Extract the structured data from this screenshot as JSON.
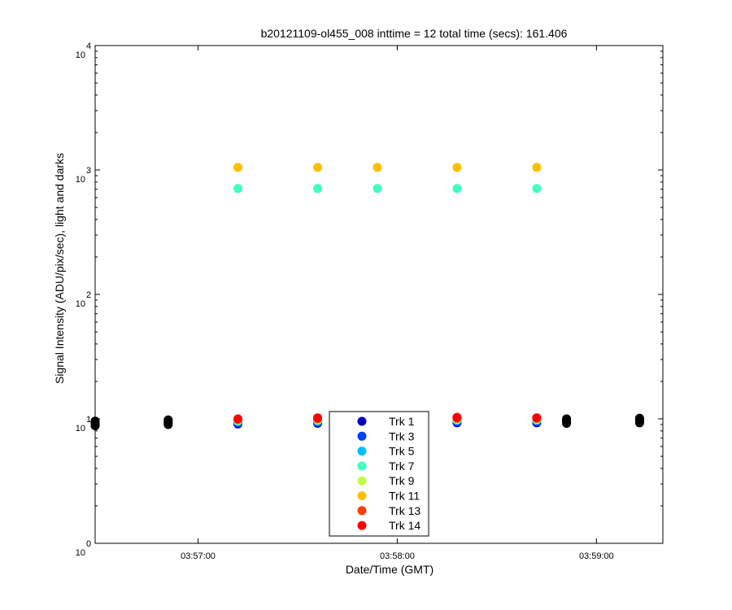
{
  "chart_data": {
    "type": "scatter",
    "title": "b20121109-ol455_008 inttime = 12 total time (secs): 161.406",
    "xlabel": "Date/Time (GMT)",
    "ylabel": "Signal Intensity (ADU/pix/sec), light and darks",
    "yscale": "log",
    "ylim": [
      1,
      10000
    ],
    "xlim": [
      "03:56:29",
      "03:59:20"
    ],
    "x_ticks": [
      "03:57:00",
      "03:58:00",
      "03:59:00"
    ],
    "y_ticks": [
      {
        "value": 1,
        "base": "10",
        "exp": "0"
      },
      {
        "value": 10,
        "base": "10",
        "exp": "1"
      },
      {
        "value": 100,
        "base": "10",
        "exp": "2"
      },
      {
        "value": 1000,
        "base": "10",
        "exp": "3"
      },
      {
        "value": 10000,
        "base": "10",
        "exp": "4"
      }
    ],
    "grid": false,
    "legend_position": "bottom-center",
    "series": [
      {
        "name": "Trk 1",
        "color": "#0000bf",
        "x": [
          "03:57:12",
          "03:57:36",
          "03:58:18",
          "03:58:42"
        ],
        "y": [
          9.1,
          9.2,
          9.3,
          9.3
        ]
      },
      {
        "name": "Trk 3",
        "color": "#0040ff",
        "x": [
          "03:57:12",
          "03:57:36",
          "03:58:18",
          "03:58:42"
        ],
        "y": [
          9.3,
          9.4,
          9.5,
          9.5
        ]
      },
      {
        "name": "Trk 5",
        "color": "#00bfff",
        "x": [
          "03:57:12",
          "03:57:36",
          "03:58:18",
          "03:58:42"
        ],
        "y": [
          9.5,
          9.6,
          9.7,
          9.7
        ]
      },
      {
        "name": "Trk 7",
        "color": "#40ffbf",
        "x": [
          "03:57:12",
          "03:57:36",
          "03:57:54",
          "03:58:18",
          "03:58:42"
        ],
        "y": [
          710,
          710,
          710,
          710,
          710
        ]
      },
      {
        "name": "Trk 9",
        "color": "#bfff40",
        "x": [
          "03:57:12",
          "03:57:36",
          "03:58:18",
          "03:58:42"
        ],
        "y": [
          9.7,
          9.8,
          9.9,
          9.9
        ]
      },
      {
        "name": "Trk 11",
        "color": "#ffbf00",
        "x": [
          "03:57:12",
          "03:57:36",
          "03:57:54",
          "03:58:18",
          "03:58:42"
        ],
        "y": [
          1050,
          1050,
          1050,
          1050,
          1050
        ]
      },
      {
        "name": "Trk 13",
        "color": "#ff4000",
        "x": [
          "03:57:12",
          "03:57:36",
          "03:58:18",
          "03:58:42"
        ],
        "y": [
          9.9,
          10.0,
          10.1,
          10.1
        ]
      },
      {
        "name": "Trk 14",
        "color": "#ff0000",
        "x": [
          "03:57:12",
          "03:57:36",
          "03:58:18",
          "03:58:42"
        ],
        "y": [
          10.0,
          10.2,
          10.3,
          10.2
        ]
      },
      {
        "color": "#000000",
        "x": [
          "03:56:29",
          "03:56:29",
          "03:56:29",
          "03:56:29",
          "03:56:29",
          "03:56:51",
          "03:56:51",
          "03:56:51",
          "03:56:51",
          "03:56:51",
          "03:58:51",
          "03:58:51",
          "03:58:51",
          "03:58:51",
          "03:58:51",
          "03:59:13",
          "03:59:13",
          "03:59:13",
          "03:59:13",
          "03:59:13"
        ],
        "y": [
          8.8,
          9.0,
          9.2,
          9.4,
          9.6,
          9.0,
          9.2,
          9.4,
          9.6,
          9.8,
          9.2,
          9.4,
          9.6,
          9.8,
          10.0,
          9.3,
          9.5,
          9.7,
          9.9,
          10.1
        ]
      }
    ]
  }
}
